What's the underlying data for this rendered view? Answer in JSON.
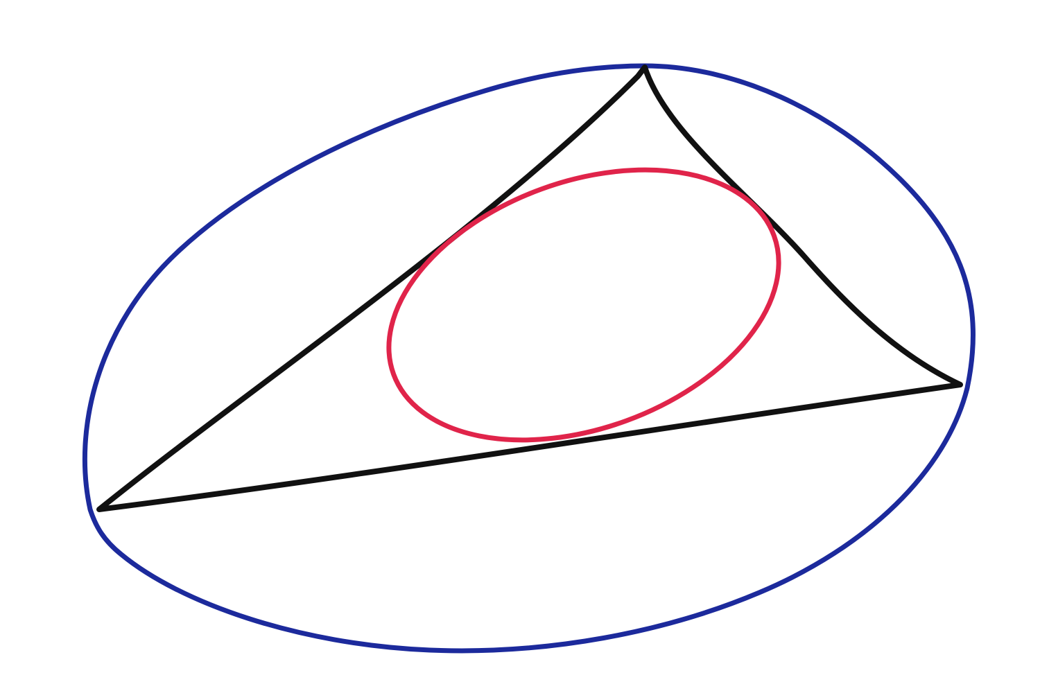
{
  "diagram": {
    "description": "",
    "colors": {
      "background": "#ffffff",
      "outer_ellipse": "#1c2a9c",
      "triangle": "#111111",
      "inner_ellipse": "#e0244a"
    },
    "shapes": {
      "outer_ellipse": "circumscribed-ellipse",
      "triangle": "triangle",
      "inner_ellipse": "inscribed-ellipse"
    }
  }
}
